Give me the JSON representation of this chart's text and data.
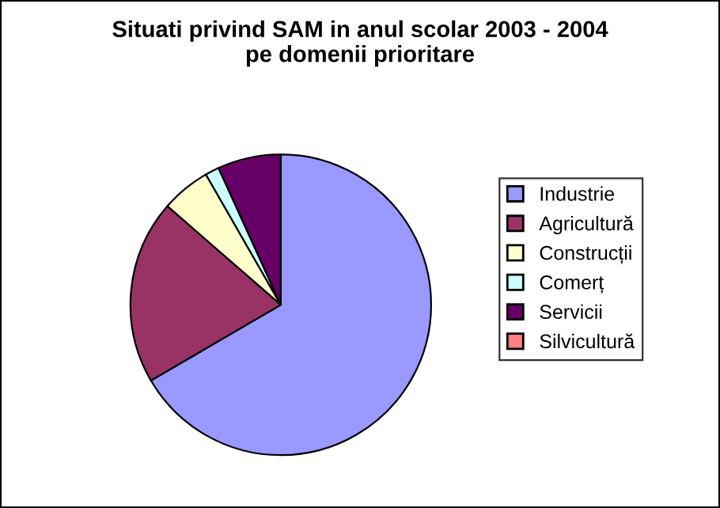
{
  "chart_data": {
    "type": "pie",
    "title": "Situati privind SAM in anul scolar 2003 - 2004\npe domenii prioritare",
    "categories": [
      "Industrie",
      "Agricultură",
      "Construcții",
      "Comerț",
      "Servicii",
      "Silvicultură"
    ],
    "values": [
      66.6,
      19.8,
      5.3,
      1.5,
      6.8,
      0
    ],
    "colors": [
      "#9999ff",
      "#993366",
      "#ffffcc",
      "#ccffff",
      "#660066",
      "#ff8080"
    ],
    "legend": "right"
  }
}
